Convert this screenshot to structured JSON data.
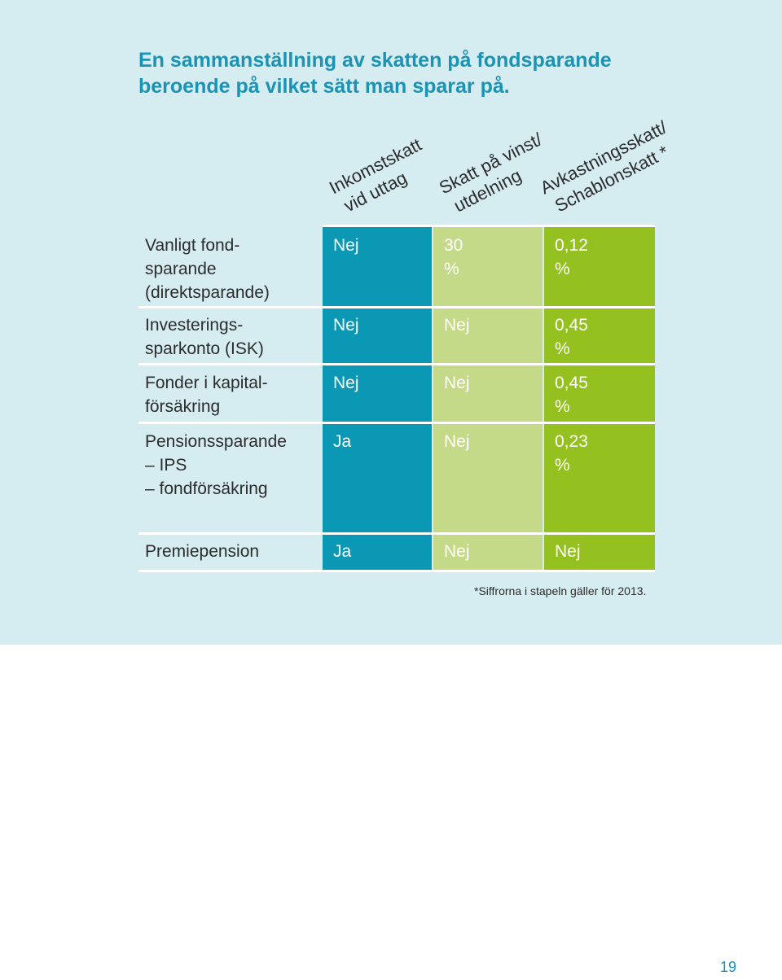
{
  "title": {
    "line1": "En sammanställning av skatten på fondsparande",
    "line2": "beroende på vilket sätt man sparar på."
  },
  "columns": [
    {
      "line1": "Inkomstskatt",
      "line2": "vid uttag"
    },
    {
      "line1": "Skatt på vinst/",
      "line2": "utdelning"
    },
    {
      "line1": "Avkastningsskatt/",
      "line2": "Schablonskatt *"
    }
  ],
  "rows": [
    {
      "label": [
        "Vanligt fond-",
        "sparande",
        "(direktsparande)"
      ],
      "values": [
        "Nej",
        "30 %",
        "0,12 %"
      ]
    },
    {
      "label": [
        "Investerings-",
        "sparkonto (ISK)"
      ],
      "values": [
        "Nej",
        "Nej",
        "0,45 %"
      ]
    },
    {
      "label": [
        "Fonder i kapital-",
        "försäkring"
      ],
      "values": [
        "Nej",
        "Nej",
        "0,45 %"
      ]
    },
    {
      "label": [
        "Pensionssparande",
        "– IPS",
        "– fondförsäkring"
      ],
      "values": [
        "Ja",
        "Nej",
        "0,23 %"
      ]
    },
    {
      "label": [
        "Premiepension"
      ],
      "values": [
        "Ja",
        "Nej",
        "Nej"
      ]
    }
  ],
  "colors": {
    "income_column": "#0b98b4",
    "gain_column": "#c5da88",
    "yield_column": "#94c11f",
    "panel": "#d5ecf0",
    "title": "#1a93b5"
  },
  "footnote": "*Siffrorna i stapeln gäller för 2013.",
  "page_number": "19"
}
